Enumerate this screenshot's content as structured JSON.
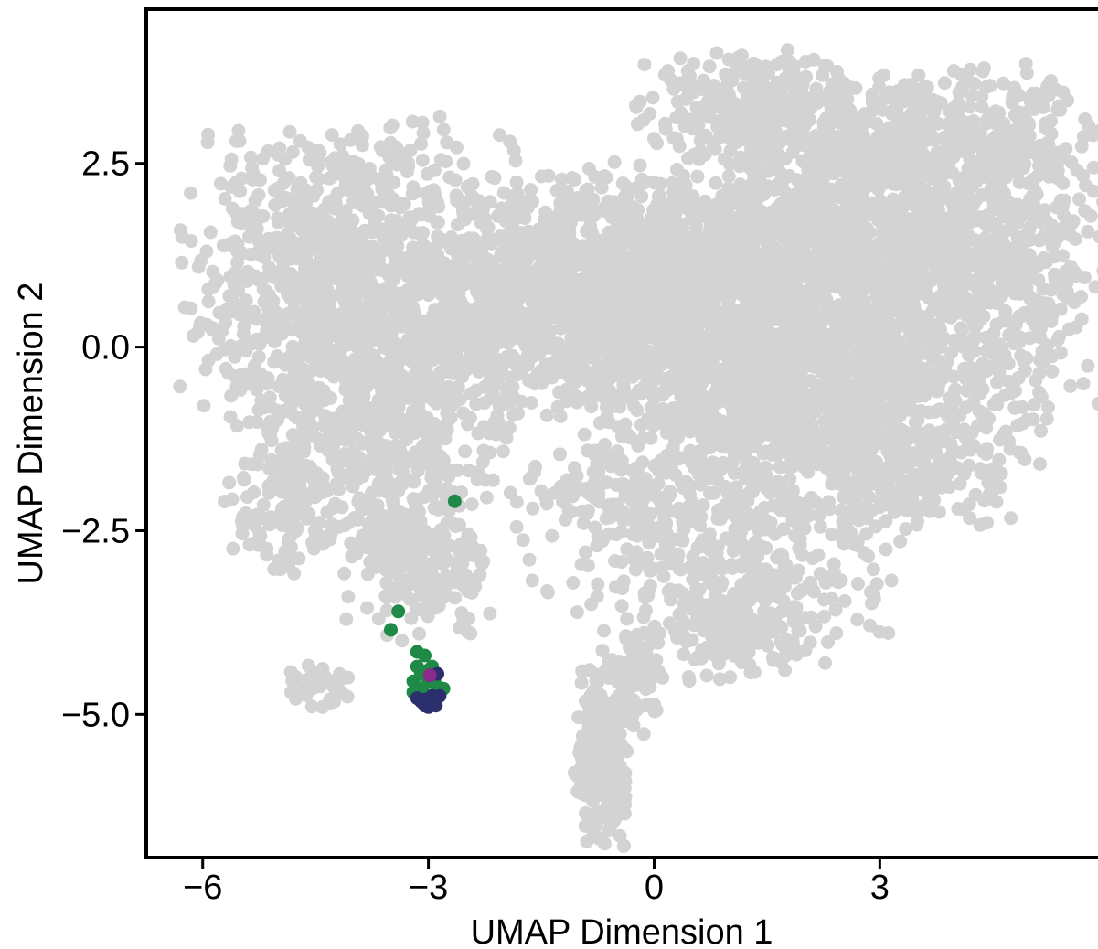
{
  "chart_data": {
    "type": "scatter",
    "title": "",
    "xlabel": "UMAP Dimension 1",
    "ylabel": "UMAP Dimension 2",
    "xlim": [
      -6.75,
      5.9
    ],
    "ylim": [
      -6.95,
      4.6
    ],
    "x_ticks": [
      {
        "value": -6,
        "label": "−6"
      },
      {
        "value": -3,
        "label": "−3"
      },
      {
        "value": 0,
        "label": "0"
      },
      {
        "value": 3,
        "label": "3"
      }
    ],
    "y_ticks": [
      {
        "value": 2.5,
        "label": "2.5"
      },
      {
        "value": 0.0,
        "label": "0.0"
      },
      {
        "value": -2.5,
        "label": "−2.5"
      },
      {
        "value": -5.0,
        "label": "−5.0"
      }
    ],
    "grid": false,
    "legend": "none",
    "series": [
      {
        "color": "#d3d3d3",
        "regions": [
          {
            "cx": -4.0,
            "cy": 0.9,
            "sx": 1.05,
            "sy": 1.05,
            "n": 1100
          },
          {
            "cx": -3.6,
            "cy": -1.4,
            "sx": 0.85,
            "sy": 0.8,
            "n": 450
          },
          {
            "cx": -4.9,
            "cy": -2.1,
            "sx": 0.35,
            "sy": 0.45,
            "n": 110
          },
          {
            "cx": -3.2,
            "cy": -2.9,
            "sx": 0.45,
            "sy": 0.5,
            "n": 170
          },
          {
            "cx": -1.1,
            "cy": 0.7,
            "sx": 1.1,
            "sy": 0.75,
            "n": 1200
          },
          {
            "cx": 1.1,
            "cy": 0.4,
            "sx": 1.0,
            "sy": 1.0,
            "n": 1300
          },
          {
            "cx": 3.4,
            "cy": 1.4,
            "sx": 1.25,
            "sy": 1.05,
            "n": 1500
          },
          {
            "cx": 2.6,
            "cy": -1.0,
            "sx": 1.2,
            "sy": 0.8,
            "n": 900
          },
          {
            "cx": 1.2,
            "cy": 3.3,
            "sx": 0.7,
            "sy": 0.35,
            "n": 260
          },
          {
            "cx": 3.8,
            "cy": 3.0,
            "sx": 0.9,
            "sy": 0.4,
            "n": 220
          },
          {
            "cx": 1.2,
            "cy": -3.0,
            "sx": 0.9,
            "sy": 0.5,
            "n": 260
          },
          {
            "cx": 1.1,
            "cy": -3.9,
            "sx": 0.6,
            "sy": 0.3,
            "n": 140
          },
          {
            "cx": -0.4,
            "cy": -2.1,
            "sx": 0.7,
            "sy": 0.35,
            "n": 160
          },
          {
            "cx": -1.0,
            "cy": -3.2,
            "sx": 0.8,
            "sy": 0.5,
            "n": 25
          },
          {
            "cx": -0.7,
            "cy": -5.6,
            "sx": 0.17,
            "sy": 0.55,
            "n": 230
          },
          {
            "cx": -0.3,
            "cy": -4.5,
            "sx": 0.2,
            "sy": 0.35,
            "n": 80
          },
          {
            "cx": -4.5,
            "cy": -4.6,
            "sx": 0.2,
            "sy": 0.18,
            "n": 40
          },
          {
            "cx": -2.8,
            "cy": -3.4,
            "sx": 0.4,
            "sy": 0.35,
            "n": 25
          }
        ]
      },
      {
        "color": "#1f8a46",
        "points": [
          [
            -2.65,
            -2.1
          ],
          [
            -3.4,
            -3.6
          ],
          [
            -3.5,
            -3.85
          ],
          [
            -3.15,
            -4.15
          ],
          [
            -3.05,
            -4.2
          ],
          [
            -2.95,
            -4.35
          ],
          [
            -3.1,
            -4.45
          ],
          [
            -3.2,
            -4.55
          ],
          [
            -3.0,
            -4.55
          ],
          [
            -2.9,
            -4.6
          ],
          [
            -3.1,
            -4.65
          ],
          [
            -2.85,
            -4.7
          ],
          [
            -3.05,
            -4.72
          ],
          [
            -3.15,
            -4.35
          ],
          [
            -2.95,
            -4.5
          ],
          [
            -3.0,
            -4.4
          ],
          [
            -2.9,
            -4.45
          ],
          [
            -3.1,
            -4.8
          ],
          [
            -2.8,
            -4.65
          ],
          [
            -3.2,
            -4.7
          ]
        ]
      },
      {
        "color": "#2b2f6e",
        "points": [
          [
            -3.05,
            -4.8
          ],
          [
            -2.95,
            -4.85
          ],
          [
            -2.9,
            -4.8
          ],
          [
            -3.0,
            -4.9
          ],
          [
            -3.1,
            -4.82
          ],
          [
            -2.85,
            -4.75
          ],
          [
            -2.95,
            -4.75
          ],
          [
            -3.05,
            -4.88
          ],
          [
            -2.9,
            -4.88
          ],
          [
            -3.15,
            -4.78
          ],
          [
            -2.88,
            -4.45
          ],
          [
            -3.0,
            -4.82
          ]
        ]
      },
      {
        "color": "#8a2a8c",
        "points": [
          [
            -2.98,
            -4.47
          ]
        ]
      }
    ]
  }
}
